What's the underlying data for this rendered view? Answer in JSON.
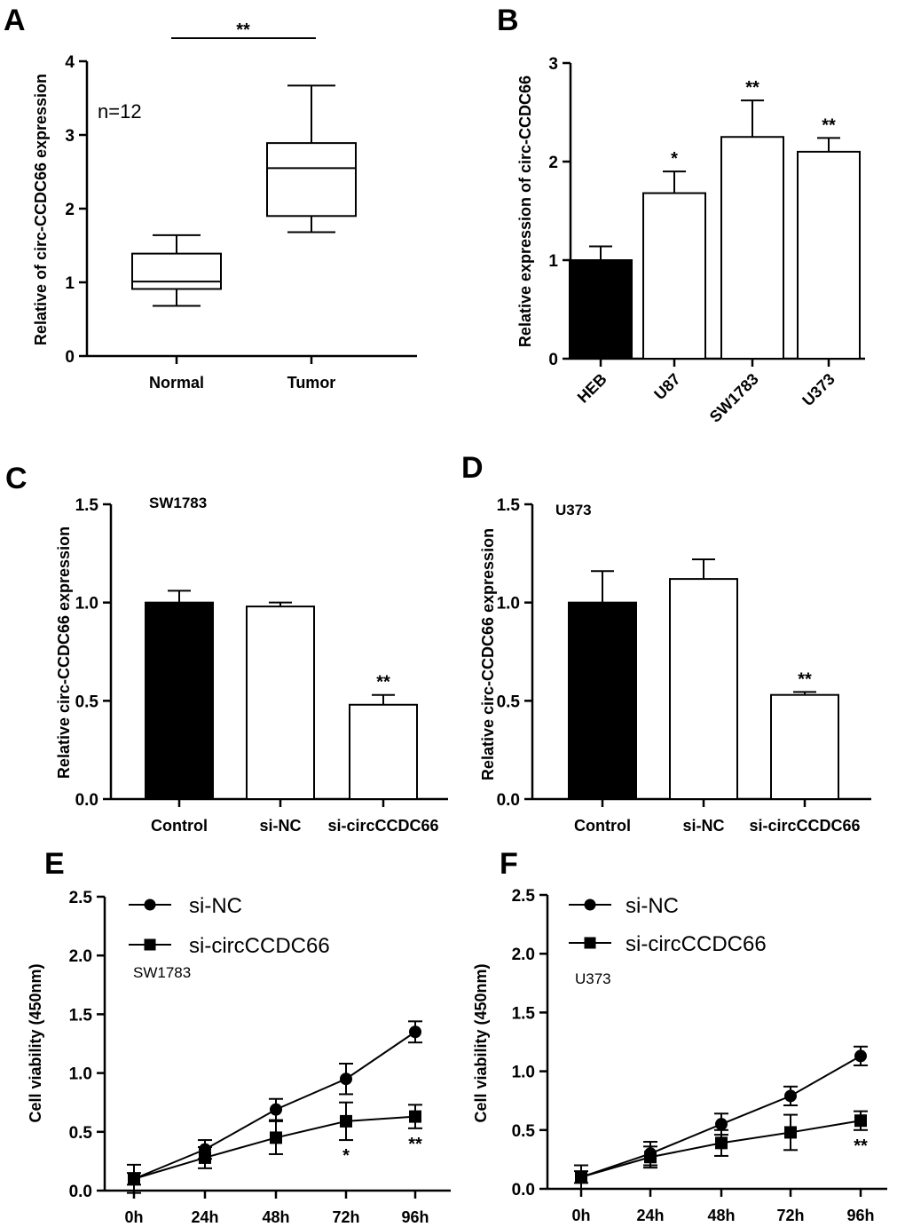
{
  "colors": {
    "filled": "#000000",
    "open": "#ffffff",
    "stroke": "#000000"
  },
  "chart_data": [
    {
      "id": "A",
      "panel_label": "A",
      "type": "box",
      "ylabel": "Relative of circ-CCDC66 expression",
      "ylim": [
        0,
        4
      ],
      "yticks": [
        "0",
        "1",
        "2",
        "3",
        "4"
      ],
      "categories": [
        "Normal",
        "Tumor"
      ],
      "boxes": [
        {
          "name": "Normal",
          "min": 0.68,
          "q1": 0.91,
          "median": 1.01,
          "q3": 1.39,
          "max": 1.64
        },
        {
          "name": "Tumor",
          "min": 1.68,
          "q1": 1.9,
          "median": 2.55,
          "q3": 2.89,
          "max": 3.67
        }
      ],
      "annotation": "n=12",
      "significance": "**"
    },
    {
      "id": "B",
      "panel_label": "B",
      "type": "bar",
      "ylabel": "Relative expression of circ-CCDC66",
      "ylim": [
        0,
        3
      ],
      "yticks": [
        "0",
        "1",
        "2",
        "3"
      ],
      "categories": [
        "HEB",
        "U87",
        "SW1783",
        "U373"
      ],
      "values": [
        1.0,
        1.68,
        2.25,
        2.1
      ],
      "errors": [
        0.14,
        0.22,
        0.37,
        0.14
      ],
      "fills": [
        "filled",
        "open",
        "open",
        "open"
      ],
      "significance": [
        "",
        "*",
        "**",
        "**"
      ]
    },
    {
      "id": "C",
      "panel_label": "C",
      "type": "bar",
      "title": "SW1783",
      "ylabel": "Relative circ-CCDC66 expression",
      "ylim": [
        0,
        1.5
      ],
      "yticks": [
        "0.0",
        "0.5",
        "1.0",
        "1.5"
      ],
      "categories": [
        "Control",
        "si-NC",
        "si-circCCDC66"
      ],
      "values": [
        1.0,
        0.98,
        0.48
      ],
      "errors": [
        0.06,
        0.02,
        0.05
      ],
      "fills": [
        "filled",
        "open",
        "open"
      ],
      "significance": [
        "",
        "",
        "**"
      ]
    },
    {
      "id": "D",
      "panel_label": "D",
      "type": "bar",
      "title": "U373",
      "ylabel": "Relative circ-CCDC66 expression",
      "ylim": [
        0,
        1.5
      ],
      "yticks": [
        "0.0",
        "0.5",
        "1.0",
        "1.5"
      ],
      "categories": [
        "Control",
        "si-NC",
        "si-circCCDC66"
      ],
      "values": [
        1.0,
        1.12,
        0.53
      ],
      "errors": [
        0.16,
        0.1,
        0.015
      ],
      "fills": [
        "filled",
        "open",
        "open"
      ],
      "significance": [
        "",
        "",
        "**"
      ]
    },
    {
      "id": "E",
      "panel_label": "E",
      "type": "line",
      "subtitle": "SW1783",
      "ylabel": "Cell viability (450nm)",
      "ylim": [
        0,
        2.5
      ],
      "yticks": [
        "0.0",
        "0.5",
        "1.0",
        "1.5",
        "2.0",
        "2.5"
      ],
      "x": [
        "0h",
        "24h",
        "48h",
        "72h",
        "96h"
      ],
      "series": [
        {
          "name": "si-NC",
          "marker": "circle",
          "values": [
            0.1,
            0.35,
            0.69,
            0.95,
            1.35
          ],
          "errors": [
            0.12,
            0.08,
            0.09,
            0.13,
            0.09
          ]
        },
        {
          "name": "si-circCCDC66",
          "marker": "square",
          "values": [
            0.1,
            0.28,
            0.45,
            0.59,
            0.63
          ],
          "errors": [
            0.05,
            0.09,
            0.14,
            0.16,
            0.1
          ]
        }
      ],
      "significance": [
        "",
        "",
        "",
        "*",
        "**"
      ]
    },
    {
      "id": "F",
      "panel_label": "F",
      "type": "line",
      "subtitle": "U373",
      "ylabel": "Cell viability (450nm)",
      "ylim": [
        0,
        2.5
      ],
      "yticks": [
        "0.0",
        "0.5",
        "1.0",
        "1.5",
        "2.0",
        "2.5"
      ],
      "x": [
        "0h",
        "24h",
        "48h",
        "72h",
        "96h"
      ],
      "series": [
        {
          "name": "si-NC",
          "marker": "circle",
          "values": [
            0.1,
            0.3,
            0.55,
            0.79,
            1.13
          ],
          "errors": [
            0.1,
            0.1,
            0.09,
            0.08,
            0.08
          ]
        },
        {
          "name": "si-circCCDC66",
          "marker": "square",
          "values": [
            0.1,
            0.27,
            0.39,
            0.48,
            0.58
          ],
          "errors": [
            0.05,
            0.09,
            0.11,
            0.15,
            0.08
          ]
        }
      ],
      "significance": [
        "",
        "",
        "",
        "",
        "**"
      ]
    }
  ]
}
